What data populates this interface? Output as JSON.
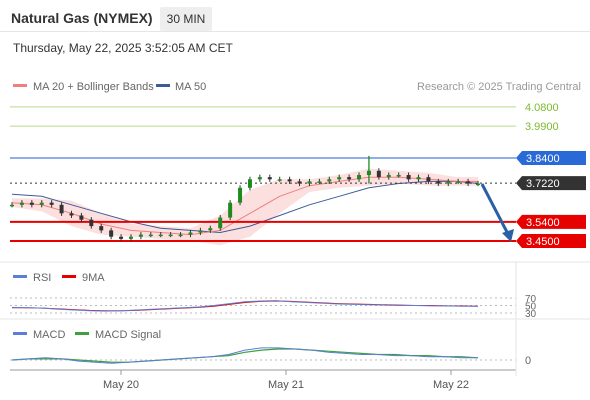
{
  "header": {
    "title": "Natural Gas (NYMEX)",
    "timeframe": "30 MIN",
    "timestamp": "Thursday, May 22, 2025 3:52:05 AM CET"
  },
  "legend": {
    "ma20_label": "MA 20 + Bollinger Bands",
    "ma50_label": "MA 50",
    "copyright": "Research © 2025 Trading Central",
    "colors": {
      "ma20": "#f08080",
      "ma50": "#3d5a99"
    }
  },
  "levels": [
    {
      "value": "4.0800",
      "kind": "target",
      "color": "#9acd32"
    },
    {
      "value": "3.9900",
      "kind": "target",
      "color": "#9acd32"
    },
    {
      "value": "3.8400",
      "kind": "resistance",
      "color": "#4a7fe0"
    },
    {
      "value": "3.7220",
      "kind": "last",
      "color": "#333333"
    },
    {
      "value": "3.5400",
      "kind": "support",
      "color": "#e60000"
    },
    {
      "value": "3.4500",
      "kind": "support",
      "color": "#e60000"
    }
  ],
  "rsi_panel": {
    "legend_rsi": "RSI",
    "legend_ma": "9MA",
    "level_labels": [
      "70",
      "50",
      "30"
    ],
    "colors": {
      "rsi": "#5b7fd6",
      "ma": "#e60000"
    }
  },
  "macd_panel": {
    "legend_macd": "MACD",
    "legend_signal": "MACD Signal",
    "zero_label": "0",
    "colors": {
      "macd": "#5b7fd6",
      "signal": "#3fa03f"
    }
  },
  "x_axis": {
    "labels": [
      "May 20",
      "May 21",
      "May 22"
    ]
  },
  "chart_data": {
    "type": "line",
    "title": "Natural Gas (NYMEX)",
    "xlabel": "",
    "ylabel": "",
    "categories": [
      "May 20",
      "May 21",
      "May 22"
    ],
    "ylim": [
      3.43,
      4.1
    ],
    "grid": false,
    "legend": "top-left",
    "series": [
      {
        "name": "Price",
        "x": [
          0,
          2,
          4,
          6,
          8,
          10,
          12,
          14,
          16,
          18,
          20,
          22,
          24,
          26,
          28,
          30,
          32,
          34,
          36,
          38,
          40,
          42,
          44,
          46,
          48,
          50,
          52,
          54,
          56,
          58,
          60,
          62,
          64,
          66,
          68,
          70,
          72,
          74,
          76,
          78,
          80,
          82,
          84,
          86,
          88,
          90,
          92,
          94
        ],
        "values": [
          3.62,
          3.63,
          3.62,
          3.63,
          3.62,
          3.58,
          3.57,
          3.55,
          3.52,
          3.5,
          3.47,
          3.46,
          3.47,
          3.48,
          3.48,
          3.48,
          3.48,
          3.48,
          3.49,
          3.5,
          3.51,
          3.56,
          3.63,
          3.7,
          3.74,
          3.75,
          3.74,
          3.74,
          3.73,
          3.72,
          3.73,
          3.73,
          3.74,
          3.75,
          3.74,
          3.76,
          3.78,
          3.75,
          3.76,
          3.76,
          3.74,
          3.75,
          3.73,
          3.72,
          3.73,
          3.73,
          3.72,
          3.72
        ]
      },
      {
        "name": "MA 20",
        "x": [
          0,
          6,
          12,
          18,
          24,
          30,
          36,
          42,
          48,
          54,
          60,
          66,
          72,
          78,
          84,
          90,
          94
        ],
        "values": [
          3.63,
          3.62,
          3.58,
          3.53,
          3.5,
          3.49,
          3.48,
          3.5,
          3.58,
          3.66,
          3.71,
          3.73,
          3.75,
          3.75,
          3.74,
          3.73,
          3.73
        ]
      },
      {
        "name": "MA 50",
        "x": [
          0,
          6,
          12,
          18,
          24,
          30,
          36,
          42,
          48,
          54,
          60,
          66,
          72,
          78,
          84,
          90,
          94
        ],
        "values": [
          3.67,
          3.66,
          3.62,
          3.58,
          3.54,
          3.51,
          3.5,
          3.49,
          3.52,
          3.57,
          3.62,
          3.66,
          3.7,
          3.72,
          3.73,
          3.73,
          3.72
        ]
      }
    ],
    "levels": [
      4.08,
      3.99,
      3.84,
      3.722,
      3.54,
      3.45
    ],
    "rsi": {
      "levels": [
        70,
        50,
        30
      ],
      "rsi": [
        45,
        44,
        43,
        40,
        38,
        36,
        35,
        36,
        38,
        40,
        42,
        44,
        46,
        50,
        55,
        60,
        62,
        63,
        60,
        58,
        56,
        54,
        53,
        52,
        51,
        50,
        50,
        49,
        49,
        48,
        48
      ],
      "ma9": [
        44,
        44,
        43,
        41,
        39,
        37,
        36,
        36,
        37,
        39,
        41,
        43,
        45,
        48,
        53,
        58,
        61,
        62,
        61,
        59,
        57,
        55,
        54,
        53,
        52,
        51,
        50,
        50,
        49,
        49,
        48
      ]
    },
    "macd": {
      "macd": [
        0.0,
        0.01,
        0.02,
        0.01,
        -0.01,
        -0.02,
        -0.03,
        -0.02,
        -0.01,
        0.0,
        0.01,
        0.02,
        0.03,
        0.05,
        0.09,
        0.11,
        0.11,
        0.1,
        0.09,
        0.07,
        0.06,
        0.05,
        0.05,
        0.04,
        0.04,
        0.03,
        0.03,
        0.02,
        0.02
      ],
      "signal": [
        0.0,
        0.01,
        0.01,
        0.01,
        0.0,
        -0.01,
        -0.02,
        -0.02,
        -0.01,
        0.0,
        0.01,
        0.02,
        0.03,
        0.04,
        0.07,
        0.09,
        0.1,
        0.1,
        0.09,
        0.08,
        0.07,
        0.06,
        0.05,
        0.05,
        0.04,
        0.04,
        0.03,
        0.03,
        0.02
      ]
    }
  }
}
